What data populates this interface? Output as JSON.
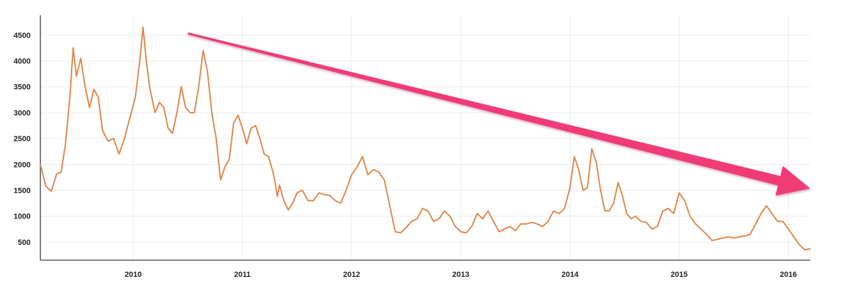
{
  "chart_data": {
    "type": "line",
    "title": "",
    "xlabel": "",
    "ylabel": "",
    "xlim": [
      2009.15,
      2016.2
    ],
    "ylim": [
      150,
      4880
    ],
    "x_ticks": [
      {
        "value": 2010.0,
        "label": "2010"
      },
      {
        "value": 2011.0,
        "label": "2011"
      },
      {
        "value": 2012.0,
        "label": "2012"
      },
      {
        "value": 2013.0,
        "label": "2013"
      },
      {
        "value": 2014.0,
        "label": "2014"
      },
      {
        "value": 2015.0,
        "label": "2015"
      },
      {
        "value": 2016.0,
        "label": "2016"
      }
    ],
    "y_ticks": [
      {
        "value": 500,
        "label": "500"
      },
      {
        "value": 1000,
        "label": "1000"
      },
      {
        "value": 1500,
        "label": "1500"
      },
      {
        "value": 2000,
        "label": "2000"
      },
      {
        "value": 2500,
        "label": "2500"
      },
      {
        "value": 3000,
        "label": "3000"
      },
      {
        "value": 3500,
        "label": "3500"
      },
      {
        "value": 4000,
        "label": "4000"
      },
      {
        "value": 4500,
        "label": "4500"
      }
    ],
    "grid": true,
    "series": [
      {
        "color": "#e0894e",
        "points": [
          [
            2009.15,
            2000
          ],
          [
            2009.2,
            1580
          ],
          [
            2009.25,
            1480
          ],
          [
            2009.3,
            1820
          ],
          [
            2009.34,
            1850
          ],
          [
            2009.38,
            2400
          ],
          [
            2009.42,
            3300
          ],
          [
            2009.45,
            4250
          ],
          [
            2009.48,
            3700
          ],
          [
            2009.52,
            4050
          ],
          [
            2009.56,
            3500
          ],
          [
            2009.6,
            3100
          ],
          [
            2009.64,
            3450
          ],
          [
            2009.68,
            3300
          ],
          [
            2009.72,
            2650
          ],
          [
            2009.77,
            2450
          ],
          [
            2009.82,
            2500
          ],
          [
            2009.87,
            2200
          ],
          [
            2009.92,
            2500
          ],
          [
            2009.97,
            2900
          ],
          [
            2010.02,
            3300
          ],
          [
            2010.06,
            4000
          ],
          [
            2010.09,
            4650
          ],
          [
            2010.12,
            4000
          ],
          [
            2010.15,
            3500
          ],
          [
            2010.2,
            3000
          ],
          [
            2010.24,
            3200
          ],
          [
            2010.28,
            3100
          ],
          [
            2010.32,
            2700
          ],
          [
            2010.36,
            2600
          ],
          [
            2010.4,
            3000
          ],
          [
            2010.44,
            3500
          ],
          [
            2010.48,
            3100
          ],
          [
            2010.52,
            3000
          ],
          [
            2010.56,
            3000
          ],
          [
            2010.6,
            3500
          ],
          [
            2010.64,
            4200
          ],
          [
            2010.68,
            3800
          ],
          [
            2010.72,
            3000
          ],
          [
            2010.76,
            2500
          ],
          [
            2010.8,
            1700
          ],
          [
            2010.84,
            1950
          ],
          [
            2010.88,
            2100
          ],
          [
            2010.92,
            2800
          ],
          [
            2010.96,
            2950
          ],
          [
            2011.0,
            2700
          ],
          [
            2011.04,
            2400
          ],
          [
            2011.08,
            2700
          ],
          [
            2011.12,
            2750
          ],
          [
            2011.16,
            2500
          ],
          [
            2011.2,
            2200
          ],
          [
            2011.24,
            2150
          ],
          [
            2011.28,
            1850
          ],
          [
            2011.3,
            1650
          ],
          [
            2011.32,
            1380
          ],
          [
            2011.34,
            1600
          ],
          [
            2011.38,
            1300
          ],
          [
            2011.42,
            1120
          ],
          [
            2011.46,
            1250
          ],
          [
            2011.5,
            1450
          ],
          [
            2011.55,
            1500
          ],
          [
            2011.6,
            1300
          ],
          [
            2011.65,
            1300
          ],
          [
            2011.7,
            1450
          ],
          [
            2011.75,
            1420
          ],
          [
            2011.8,
            1400
          ],
          [
            2011.85,
            1300
          ],
          [
            2011.9,
            1250
          ],
          [
            2011.95,
            1500
          ],
          [
            2012.0,
            1800
          ],
          [
            2012.05,
            1950
          ],
          [
            2012.1,
            2150
          ],
          [
            2012.15,
            1800
          ],
          [
            2012.2,
            1900
          ],
          [
            2012.25,
            1850
          ],
          [
            2012.3,
            1700
          ],
          [
            2012.35,
            1200
          ],
          [
            2012.4,
            700
          ],
          [
            2012.45,
            680
          ],
          [
            2012.5,
            780
          ],
          [
            2012.55,
            900
          ],
          [
            2012.6,
            950
          ],
          [
            2012.65,
            1150
          ],
          [
            2012.7,
            1100
          ],
          [
            2012.75,
            900
          ],
          [
            2012.8,
            950
          ],
          [
            2012.85,
            1100
          ],
          [
            2012.9,
            1000
          ],
          [
            2012.95,
            800
          ],
          [
            2013.0,
            700
          ],
          [
            2013.05,
            680
          ],
          [
            2013.1,
            800
          ],
          [
            2013.15,
            1050
          ],
          [
            2013.2,
            950
          ],
          [
            2013.25,
            1100
          ],
          [
            2013.3,
            900
          ],
          [
            2013.35,
            700
          ],
          [
            2013.4,
            750
          ],
          [
            2013.45,
            800
          ],
          [
            2013.5,
            720
          ],
          [
            2013.55,
            850
          ],
          [
            2013.6,
            850
          ],
          [
            2013.65,
            880
          ],
          [
            2013.7,
            850
          ],
          [
            2013.75,
            800
          ],
          [
            2013.8,
            900
          ],
          [
            2013.85,
            1100
          ],
          [
            2013.9,
            1050
          ],
          [
            2013.95,
            1150
          ],
          [
            2014.0,
            1550
          ],
          [
            2014.04,
            2150
          ],
          [
            2014.08,
            1900
          ],
          [
            2014.12,
            1500
          ],
          [
            2014.16,
            1550
          ],
          [
            2014.2,
            2300
          ],
          [
            2014.24,
            2050
          ],
          [
            2014.28,
            1500
          ],
          [
            2014.32,
            1100
          ],
          [
            2014.36,
            1100
          ],
          [
            2014.4,
            1250
          ],
          [
            2014.44,
            1650
          ],
          [
            2014.48,
            1400
          ],
          [
            2014.52,
            1050
          ],
          [
            2014.56,
            950
          ],
          [
            2014.6,
            1000
          ],
          [
            2014.65,
            900
          ],
          [
            2014.7,
            880
          ],
          [
            2014.75,
            750
          ],
          [
            2014.8,
            800
          ],
          [
            2014.85,
            1100
          ],
          [
            2014.9,
            1150
          ],
          [
            2014.95,
            1050
          ],
          [
            2015.0,
            1450
          ],
          [
            2015.05,
            1300
          ],
          [
            2015.1,
            1000
          ],
          [
            2015.15,
            850
          ],
          [
            2015.2,
            750
          ],
          [
            2015.25,
            650
          ],
          [
            2015.3,
            530
          ],
          [
            2015.35,
            550
          ],
          [
            2015.4,
            580
          ],
          [
            2015.45,
            600
          ],
          [
            2015.5,
            580
          ],
          [
            2015.55,
            600
          ],
          [
            2015.6,
            620
          ],
          [
            2015.65,
            650
          ],
          [
            2015.7,
            850
          ],
          [
            2015.75,
            1050
          ],
          [
            2015.8,
            1200
          ],
          [
            2015.85,
            1050
          ],
          [
            2015.9,
            900
          ],
          [
            2015.95,
            900
          ],
          [
            2016.0,
            750
          ],
          [
            2016.05,
            600
          ],
          [
            2016.1,
            450
          ],
          [
            2016.15,
            350
          ],
          [
            2016.2,
            370
          ]
        ]
      }
    ],
    "annotations": [
      {
        "type": "arrow",
        "color": "#f03a76",
        "from": [
          2010.5,
          4530
        ],
        "to": [
          2016.2,
          1535
        ]
      }
    ]
  }
}
